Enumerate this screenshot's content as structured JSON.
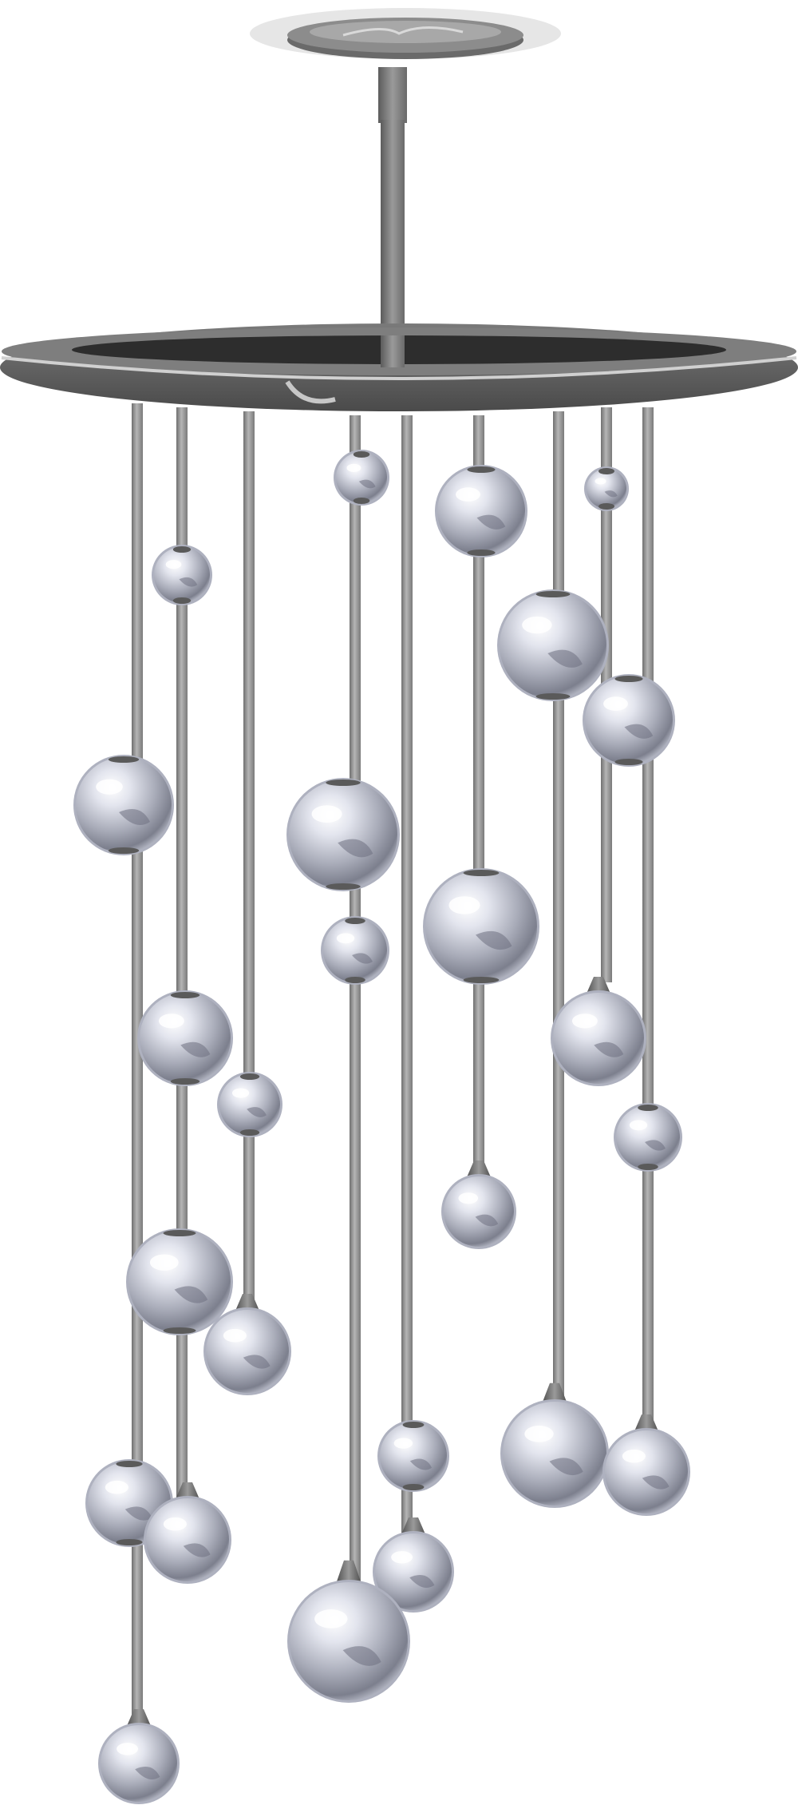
{
  "scene": {
    "subject": "pendant-chandelier",
    "style": "vector-illustration",
    "colors": {
      "background": "#ffffff",
      "metal_dark": "#555555",
      "metal_mid": "#8a8a8a",
      "metal_light": "#c8c8c8",
      "sphere_light": "#eef0f7",
      "sphere_mid": "#b9bcc8",
      "sphere_dark": "#6e7080",
      "canopy_glow": "#e6e6e6"
    }
  }
}
